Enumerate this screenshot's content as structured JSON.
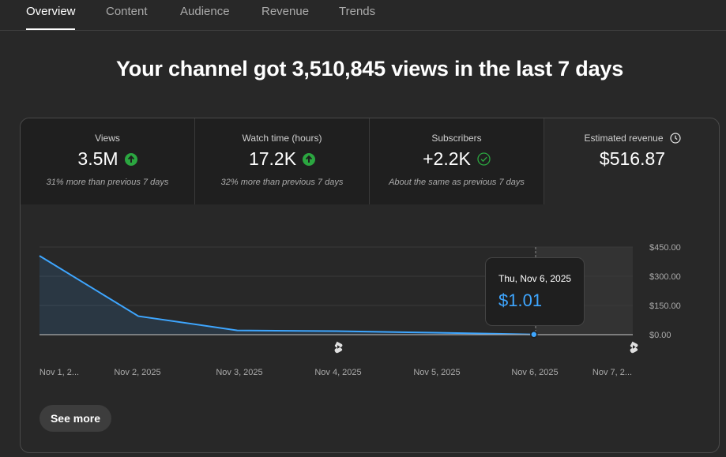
{
  "tabs": [
    "Overview",
    "Content",
    "Audience",
    "Revenue",
    "Trends"
  ],
  "headline": "Your channel got 3,510,845 views in the last 7 days",
  "metrics": {
    "views": {
      "label": "Views",
      "value": "3.5M",
      "sub": "31% more than previous 7 days",
      "trend": "up"
    },
    "watch_time": {
      "label": "Watch time (hours)",
      "value": "17.2K",
      "sub": "32% more than previous 7 days",
      "trend": "up"
    },
    "subscribers": {
      "label": "Subscribers",
      "value": "+2.2K",
      "sub": "About the same as previous 7 days",
      "trend": "same"
    },
    "revenue": {
      "label": "Estimated revenue",
      "value": "$516.87"
    }
  },
  "chart_data": {
    "type": "area",
    "series": [
      {
        "name": "Estimated revenue",
        "values": [
          405,
          95,
          22,
          18,
          10,
          1.01,
          1.01
        ]
      }
    ],
    "x": [
      "Nov 1, 2...",
      "Nov 2, 2025",
      "Nov 3, 2025",
      "Nov 4, 2025",
      "Nov 5, 2025",
      "Nov 6, 2025",
      "Nov 7, 2..."
    ],
    "y_ticks": [
      "$450.00",
      "$300.00",
      "$150.00",
      "$0.00"
    ],
    "ylim": [
      0,
      450
    ],
    "shorts_markers": [
      "Nov 4, 2025",
      "Nov 7, 2..."
    ]
  },
  "tooltip": {
    "date": "Thu, Nov 6, 2025",
    "value": "$1.01"
  },
  "colors": {
    "line": "#3ea6ff",
    "up": "#2ba640",
    "check": "#2ba640"
  },
  "see_more_label": "See more"
}
